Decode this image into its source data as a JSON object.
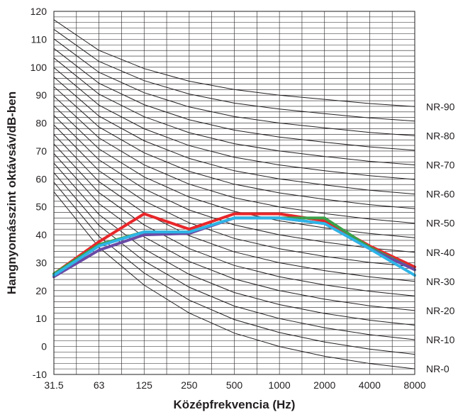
{
  "chart_data": {
    "type": "line",
    "title": "",
    "xlabel": "Középfrekvencia (Hz)",
    "ylabel": "Hangnyomásszint oktávsáv/dB-ben",
    "x_categories": [
      "31.5",
      "63",
      "125",
      "250",
      "500",
      "1000",
      "2000",
      "4000",
      "8000"
    ],
    "y_ticks": [
      "-10",
      "0",
      "10",
      "20",
      "30",
      "40",
      "50",
      "60",
      "70",
      "80",
      "90",
      "100",
      "110",
      "120"
    ],
    "ylim": [
      -10,
      120
    ],
    "grid": "on",
    "x_scale": "log (octave bands)",
    "reference_curves": {
      "family": "NR",
      "levels": [
        0,
        5,
        10,
        15,
        20,
        25,
        30,
        35,
        40,
        45,
        50,
        55,
        60,
        65,
        70,
        75,
        80,
        85,
        90
      ],
      "labels": [
        "NR-0",
        "NR-10",
        "NR-20",
        "NR-30",
        "NR-40",
        "NR-50",
        "NR-60",
        "NR-70",
        "NR-80",
        "NR-90"
      ],
      "sample_values": {
        "NR-0": [
          55.4,
          35.5,
          22.0,
          12.0,
          4.8,
          0.0,
          -3.5,
          -6.1,
          -8.0
        ],
        "NR-90": [
          117.0,
          106.0,
          99.5,
          95.0,
          92.0,
          90.0,
          88.5,
          87.0,
          85.9
        ]
      }
    },
    "series": [
      {
        "color": "#e8262a",
        "values": [
          26,
          37.5,
          47.5,
          42,
          47.5,
          47.5,
          45,
          36,
          28.5
        ]
      },
      {
        "color": "#3aa04a",
        "values": [
          26,
          36.5,
          41,
          41,
          46,
          46,
          46,
          35.5,
          27.5
        ]
      },
      {
        "color": "#6a4aa5",
        "values": [
          25,
          34.5,
          40,
          40.5,
          46,
          46,
          44,
          35,
          27.5
        ]
      },
      {
        "color": "#2eb4e6",
        "values": [
          25.5,
          36,
          41,
          41,
          46,
          46,
          44,
          35,
          25.5
        ]
      }
    ]
  }
}
